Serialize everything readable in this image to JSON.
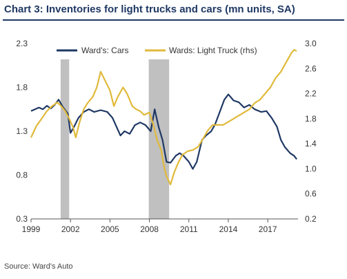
{
  "chart_data": {
    "type": "line",
    "title": "Chart 3: Inventories for light trucks and cars (mn units, SA)",
    "source": "Source: Ward's Auto",
    "x_ticks": [
      "1999",
      "2002",
      "2005",
      "2008",
      "2011",
      "2014",
      "2017"
    ],
    "x_range": [
      1999,
      2019.3
    ],
    "y_left": {
      "ticks": [
        "0.3",
        "0.8",
        "1.3",
        "1.8",
        "2.3"
      ],
      "range": [
        0.3,
        2.3
      ]
    },
    "y_right": {
      "ticks": [
        "0.2",
        "0.6",
        "1.0",
        "1.4",
        "1.8",
        "2.2",
        "2.6",
        "3.0"
      ],
      "range": [
        0.2,
        3.0
      ]
    },
    "recessions": [
      [
        2001.25,
        2001.9
      ],
      [
        2007.95,
        2009.5
      ]
    ],
    "grid": false,
    "legend_position": "top",
    "series": [
      {
        "name": "Ward's: Cars",
        "axis": "left",
        "color": "#1f3864",
        "points": [
          [
            1999.0,
            1.53
          ],
          [
            1999.3,
            1.55
          ],
          [
            1999.6,
            1.57
          ],
          [
            1999.9,
            1.55
          ],
          [
            2000.2,
            1.59
          ],
          [
            2000.5,
            1.56
          ],
          [
            2000.8,
            1.6
          ],
          [
            2001.1,
            1.66
          ],
          [
            2001.4,
            1.58
          ],
          [
            2001.8,
            1.5
          ],
          [
            2002.0,
            1.28
          ],
          [
            2002.3,
            1.36
          ],
          [
            2002.6,
            1.45
          ],
          [
            2003.0,
            1.52
          ],
          [
            2003.4,
            1.55
          ],
          [
            2003.8,
            1.52
          ],
          [
            2004.3,
            1.54
          ],
          [
            2004.8,
            1.52
          ],
          [
            2005.2,
            1.45
          ],
          [
            2005.5,
            1.35
          ],
          [
            2005.8,
            1.25
          ],
          [
            2006.1,
            1.3
          ],
          [
            2006.5,
            1.27
          ],
          [
            2006.9,
            1.37
          ],
          [
            2007.3,
            1.4
          ],
          [
            2007.7,
            1.37
          ],
          [
            2008.1,
            1.3
          ],
          [
            2008.4,
            1.55
          ],
          [
            2008.7,
            1.35
          ],
          [
            2009.0,
            1.2
          ],
          [
            2009.3,
            0.95
          ],
          [
            2009.6,
            0.94
          ],
          [
            2010.0,
            1.02
          ],
          [
            2010.3,
            1.05
          ],
          [
            2010.6,
            1.02
          ],
          [
            2011.0,
            0.95
          ],
          [
            2011.3,
            0.87
          ],
          [
            2011.6,
            0.95
          ],
          [
            2012.0,
            1.2
          ],
          [
            2012.3,
            1.25
          ],
          [
            2012.7,
            1.3
          ],
          [
            2013.0,
            1.38
          ],
          [
            2013.3,
            1.5
          ],
          [
            2013.7,
            1.66
          ],
          [
            2014.0,
            1.72
          ],
          [
            2014.4,
            1.65
          ],
          [
            2014.8,
            1.63
          ],
          [
            2015.2,
            1.57
          ],
          [
            2015.6,
            1.6
          ],
          [
            2016.0,
            1.55
          ],
          [
            2016.5,
            1.52
          ],
          [
            2016.9,
            1.53
          ],
          [
            2017.3,
            1.45
          ],
          [
            2017.7,
            1.35
          ],
          [
            2018.0,
            1.2
          ],
          [
            2018.3,
            1.12
          ],
          [
            2018.7,
            1.05
          ],
          [
            2019.0,
            1.02
          ],
          [
            2019.2,
            0.98
          ]
        ]
      },
      {
        "name": "Wards: Light Truck (rhs)",
        "axis": "right",
        "color": "#e0b93a",
        "points": [
          [
            1999.0,
            1.5
          ],
          [
            1999.4,
            1.68
          ],
          [
            1999.8,
            1.8
          ],
          [
            2000.2,
            1.92
          ],
          [
            2000.6,
            2.0
          ],
          [
            2001.0,
            2.06
          ],
          [
            2001.3,
            2.0
          ],
          [
            2001.6,
            1.92
          ],
          [
            2001.9,
            1.8
          ],
          [
            2002.2,
            1.66
          ],
          [
            2002.4,
            1.5
          ],
          [
            2002.7,
            1.75
          ],
          [
            2003.0,
            1.95
          ],
          [
            2003.3,
            2.05
          ],
          [
            2003.7,
            2.15
          ],
          [
            2004.0,
            2.3
          ],
          [
            2004.3,
            2.55
          ],
          [
            2004.6,
            2.42
          ],
          [
            2005.0,
            2.25
          ],
          [
            2005.3,
            2.0
          ],
          [
            2005.6,
            2.15
          ],
          [
            2006.0,
            2.3
          ],
          [
            2006.3,
            2.2
          ],
          [
            2006.7,
            2.0
          ],
          [
            2007.0,
            1.95
          ],
          [
            2007.3,
            1.92
          ],
          [
            2007.6,
            1.86
          ],
          [
            2008.0,
            1.9
          ],
          [
            2008.3,
            1.7
          ],
          [
            2008.6,
            1.45
          ],
          [
            2008.9,
            1.3
          ],
          [
            2009.1,
            1.05
          ],
          [
            2009.3,
            0.88
          ],
          [
            2009.6,
            0.75
          ],
          [
            2009.9,
            0.95
          ],
          [
            2010.2,
            1.1
          ],
          [
            2010.5,
            1.22
          ],
          [
            2010.9,
            1.28
          ],
          [
            2011.3,
            1.3
          ],
          [
            2011.7,
            1.35
          ],
          [
            2012.0,
            1.45
          ],
          [
            2012.4,
            1.6
          ],
          [
            2012.8,
            1.7
          ],
          [
            2013.2,
            1.7
          ],
          [
            2013.6,
            1.7
          ],
          [
            2014.0,
            1.75
          ],
          [
            2014.4,
            1.8
          ],
          [
            2014.8,
            1.85
          ],
          [
            2015.2,
            1.9
          ],
          [
            2015.6,
            1.95
          ],
          [
            2016.0,
            2.05
          ],
          [
            2016.4,
            2.1
          ],
          [
            2016.8,
            2.2
          ],
          [
            2017.2,
            2.3
          ],
          [
            2017.6,
            2.45
          ],
          [
            2018.0,
            2.55
          ],
          [
            2018.4,
            2.7
          ],
          [
            2018.8,
            2.85
          ],
          [
            2019.0,
            2.9
          ],
          [
            2019.2,
            2.88
          ]
        ]
      }
    ]
  }
}
